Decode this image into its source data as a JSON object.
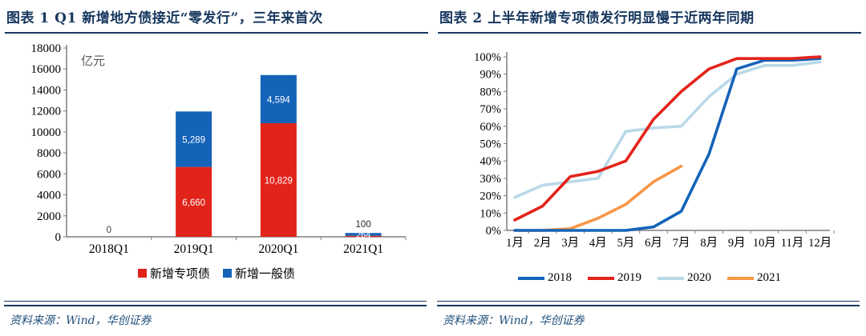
{
  "panels": [
    {
      "title": "图表 1   Q1 新增地方债接近“零发行”，三年来首次",
      "source": "资料来源：Wind，华创证券"
    },
    {
      "title": "图表 2   上半年新增专项债发行明显慢于近两年同期",
      "source": "资料来源：Wind，华创证券"
    }
  ],
  "colors": {
    "navy": "#17375e",
    "source_text": "#1f4e79",
    "axis": "#595959",
    "red": "#e2231a",
    "blue": "#1463b8",
    "light_blue": "#b9d9e8",
    "orange": "#f79646",
    "unit_label_gray": "#595959"
  },
  "chart_data": [
    {
      "type": "bar",
      "stacked": true,
      "title": "Q1 新增地方债接近“零发行”，三年来首次",
      "unit_label": "亿元",
      "categories": [
        "2018Q1",
        "2019Q1",
        "2020Q1",
        "2021Q1"
      ],
      "series": [
        {
          "name": "新增专项债",
          "color": "#e2231a",
          "values": [
            0,
            6660,
            10829,
            100
          ]
        },
        {
          "name": "新增一般债",
          "color": "#1463b8",
          "values": [
            0,
            5289,
            4594,
            264
          ]
        }
      ],
      "zero_label": "0",
      "ylim": [
        0,
        18000
      ],
      "ytick_step": 2000,
      "grid": false,
      "legend_position": "bottom"
    },
    {
      "type": "line",
      "title": "上半年新增专项债发行明显慢于近两年同期",
      "x_labels": [
        "1月",
        "2月",
        "3月",
        "4月",
        "5月",
        "6月",
        "7月",
        "8月",
        "9月",
        "10月",
        "11月",
        "12月"
      ],
      "ylim": [
        0,
        100
      ],
      "ytick_step": 10,
      "ytick_suffix": "%",
      "grid": false,
      "legend_position": "bottom",
      "draw_order": [
        2,
        3,
        0,
        1
      ],
      "series": [
        {
          "name": "2018",
          "color": "#1463b8",
          "values": [
            0,
            0,
            0,
            0,
            0,
            2,
            11,
            44,
            93,
            98,
            98,
            99
          ]
        },
        {
          "name": "2019",
          "color": "#e2231a",
          "values": [
            6,
            14,
            31,
            34,
            40,
            64,
            80,
            93,
            99,
            99,
            99,
            100
          ]
        },
        {
          "name": "2020",
          "color": "#b9d9e8",
          "values": [
            19,
            26,
            28,
            30,
            57,
            59,
            60,
            77,
            90,
            95,
            95,
            97
          ]
        },
        {
          "name": "2021",
          "color": "#f79646",
          "values": [
            0,
            0,
            1,
            7,
            15,
            28,
            37
          ]
        }
      ]
    }
  ]
}
